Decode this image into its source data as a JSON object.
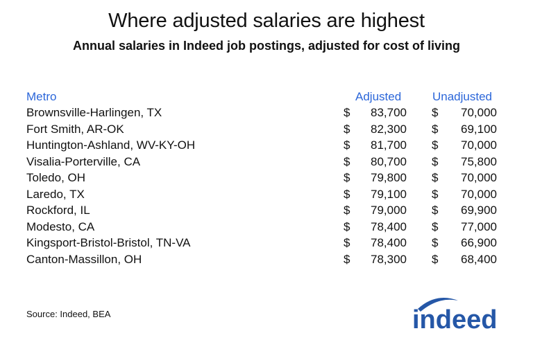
{
  "chart_data": {
    "type": "table",
    "title": "Where adjusted salaries are highest",
    "subtitle": "Annual salaries in Indeed job postings, adjusted for cost of living",
    "columns": [
      "Metro",
      "Adjusted",
      "Unadjusted"
    ],
    "currency_symbol": "$",
    "rows": [
      {
        "metro": "Brownsville-Harlingen, TX",
        "adjusted": "83,700",
        "unadjusted": "70,000"
      },
      {
        "metro": "Fort Smith, AR-OK",
        "adjusted": "82,300",
        "unadjusted": "69,100"
      },
      {
        "metro": "Huntington-Ashland, WV-KY-OH",
        "adjusted": "81,700",
        "unadjusted": "70,000"
      },
      {
        "metro": "Visalia-Porterville, CA",
        "adjusted": "80,700",
        "unadjusted": "75,800"
      },
      {
        "metro": "Toledo, OH",
        "adjusted": "79,800",
        "unadjusted": "70,000"
      },
      {
        "metro": "Laredo, TX",
        "adjusted": "79,100",
        "unadjusted": "70,000"
      },
      {
        "metro": "Rockford, IL",
        "adjusted": "79,000",
        "unadjusted": "69,900"
      },
      {
        "metro": "Modesto, CA",
        "adjusted": "78,400",
        "unadjusted": "77,000"
      },
      {
        "metro": "Kingsport-Bristol-Bristol, TN-VA",
        "adjusted": "78,400",
        "unadjusted": "66,900"
      },
      {
        "metro": "Canton-Massillon, OH",
        "adjusted": "78,300",
        "unadjusted": "68,400"
      }
    ],
    "source": "Source: Indeed, BEA"
  },
  "logo_text": "indeed",
  "colors": {
    "header_text": "#2b66d9",
    "logo": "#2557a7",
    "body_text": "#111111"
  }
}
